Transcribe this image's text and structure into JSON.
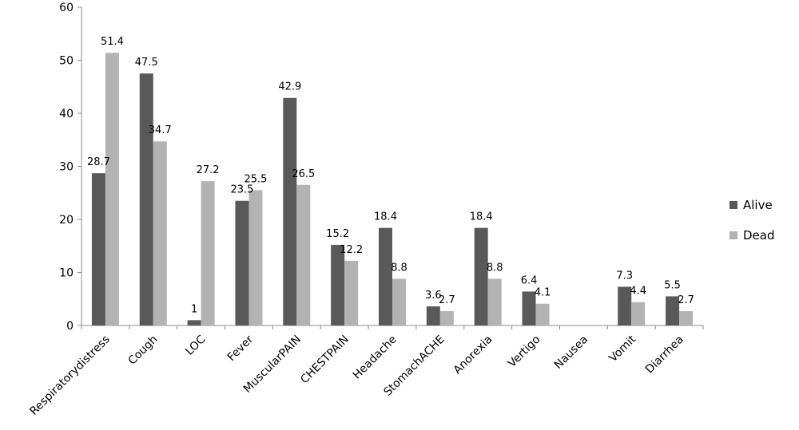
{
  "chart_data": {
    "type": "bar",
    "categories": [
      "Respiratorydistress",
      "Cough",
      "LOC",
      "Fever",
      "MuscularPAIN",
      "CHESTPAIN",
      "Headache",
      "StomachACHE",
      "Anorexia",
      "Vertigo",
      "Nausea",
      "Vomit",
      "Diarrhea"
    ],
    "series": [
      {
        "name": "Alive",
        "color": "#595959",
        "values": [
          28.7,
          47.5,
          1,
          23.5,
          42.9,
          15.2,
          18.4,
          3.6,
          18.4,
          6.4,
          null,
          7.3,
          5.5
        ],
        "labels": [
          "28.7",
          "47.5",
          "1",
          "23.5",
          "42.9",
          "15.2",
          "18.4",
          "3.6",
          "18.4",
          "6.4",
          "",
          "7.3",
          "5.5"
        ]
      },
      {
        "name": "Dead",
        "color": "#b3b3b3",
        "values": [
          51.4,
          34.7,
          27.2,
          25.5,
          26.5,
          12.2,
          8.8,
          2.7,
          8.8,
          4.1,
          null,
          4.4,
          2.7
        ],
        "labels": [
          "51.4",
          "34.7",
          "27.2",
          "25.5",
          "26.5",
          "12.2",
          "8.8",
          "2.7",
          "8.8",
          "4.1",
          "",
          "4.4",
          "2.7"
        ]
      }
    ],
    "ylim": [
      0,
      60
    ],
    "yticks": [
      "0",
      "10",
      "20",
      "30",
      "40",
      "50",
      "60"
    ],
    "legend_position": "right",
    "grid": false
  }
}
